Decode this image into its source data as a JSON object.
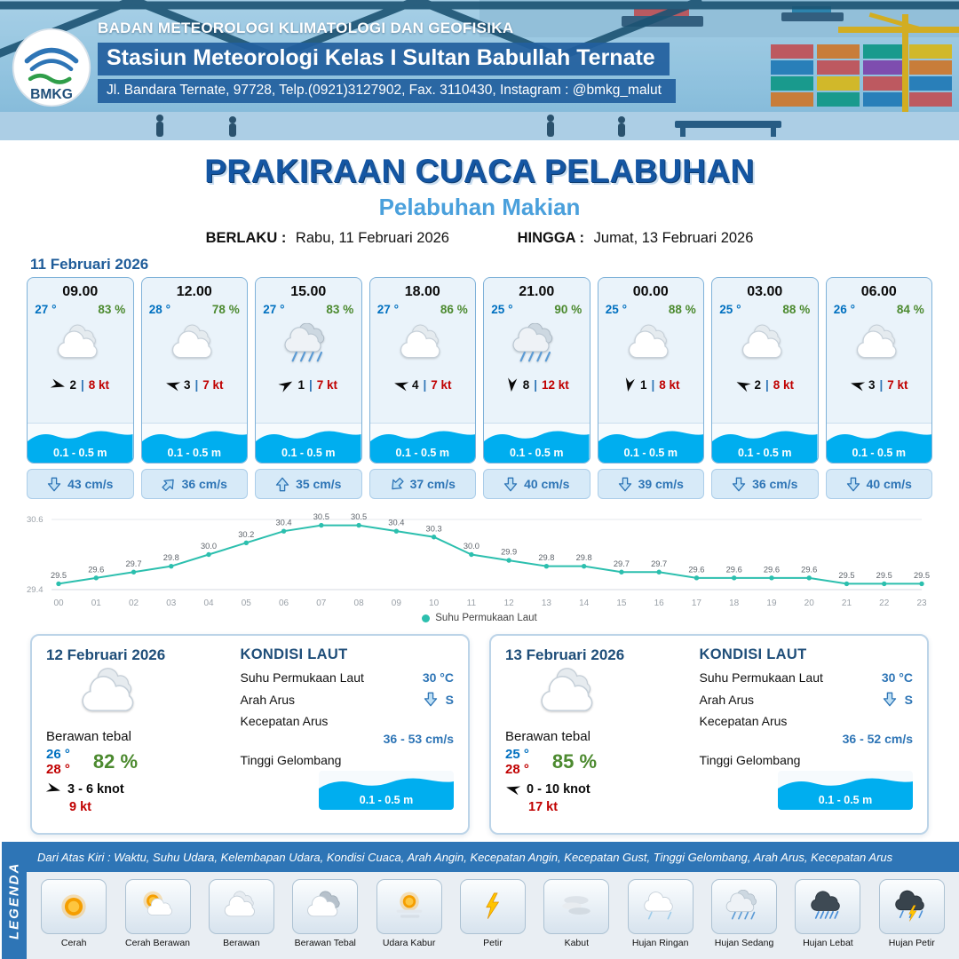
{
  "header": {
    "logo_text": "BMKG",
    "agency": "BADAN METEOROLOGI KLIMATOLOGI DAN GEOFISIKA",
    "station": "Stasiun Meteorologi Kelas I Sultan Babullah Ternate",
    "address": "Jl. Bandara Ternate, 97728, Telp.(0921)3127902, Fax. 3110430, Instagram : @bmkg_malut"
  },
  "title": {
    "main": "PRAKIRAAN CUACA PELABUHAN",
    "subtitle": "Pelabuhan Makian",
    "berlaku_label": "BERLAKU :",
    "berlaku_value": "Rabu, 11 Februari 2026",
    "hingga_label": "HINGGA :",
    "hingga_value": "Jumat, 13 Februari 2026"
  },
  "forecast": {
    "date": "11 Februari 2026",
    "cards": [
      {
        "time": "09.00",
        "temp": "27 °",
        "rh": "83 %",
        "icon": "berawan",
        "wind_rot": 15,
        "wind_val": "2",
        "wind_kt": "8 kt",
        "wave": "0.1 - 0.5 m",
        "cur_rot": 0,
        "current": "43 cm/s"
      },
      {
        "time": "12.00",
        "temp": "28 °",
        "rh": "78 %",
        "icon": "berawan",
        "wind_rot": 195,
        "wind_val": "3",
        "wind_kt": "7 kt",
        "wave": "0.1 - 0.5 m",
        "cur_rot": -135,
        "current": "36 cm/s"
      },
      {
        "time": "15.00",
        "temp": "27 °",
        "rh": "83 %",
        "icon": "hujan-sedang",
        "wind_rot": -30,
        "wind_val": "1",
        "wind_kt": "7 kt",
        "wave": "0.1 - 0.5 m",
        "cur_rot": 180,
        "current": "35 cm/s"
      },
      {
        "time": "18.00",
        "temp": "27 °",
        "rh": "86 %",
        "icon": "berawan",
        "wind_rot": 195,
        "wind_val": "4",
        "wind_kt": "7 kt",
        "wave": "0.1 - 0.5 m",
        "cur_rot": 45,
        "current": "37 cm/s"
      },
      {
        "time": "21.00",
        "temp": "25 °",
        "rh": "90 %",
        "icon": "hujan-sedang",
        "wind_rot": 95,
        "wind_val": "8",
        "wind_kt": "12 kt",
        "wave": "0.1 - 0.5 m",
        "cur_rot": 0,
        "current": "40 cm/s"
      },
      {
        "time": "00.00",
        "temp": "25 °",
        "rh": "88 %",
        "icon": "berawan",
        "wind_rot": 100,
        "wind_val": "1",
        "wind_kt": "8 kt",
        "wave": "0.1 - 0.5 m",
        "cur_rot": 0,
        "current": "39 cm/s"
      },
      {
        "time": "03.00",
        "temp": "25 °",
        "rh": "88 %",
        "icon": "berawan",
        "wind_rot": 205,
        "wind_val": "2",
        "wind_kt": "8 kt",
        "wave": "0.1 - 0.5 m",
        "cur_rot": 0,
        "current": "36 cm/s"
      },
      {
        "time": "06.00",
        "temp": "26 °",
        "rh": "84 %",
        "icon": "berawan",
        "wind_rot": 195,
        "wind_val": "3",
        "wind_kt": "7 kt",
        "wave": "0.1 - 0.5 m",
        "cur_rot": 0,
        "current": "40 cm/s"
      }
    ]
  },
  "chart_data": {
    "type": "line",
    "legend": "Suhu Permukaan Laut",
    "x": [
      "00",
      "01",
      "02",
      "03",
      "04",
      "05",
      "06",
      "07",
      "08",
      "09",
      "10",
      "11",
      "12",
      "13",
      "14",
      "15",
      "16",
      "17",
      "18",
      "19",
      "20",
      "21",
      "22",
      "23"
    ],
    "values": [
      29.5,
      29.6,
      29.7,
      29.8,
      30.0,
      30.2,
      30.4,
      30.5,
      30.5,
      30.4,
      30.3,
      30.0,
      29.9,
      29.8,
      29.8,
      29.7,
      29.7,
      29.6,
      29.6,
      29.6,
      29.6,
      29.5,
      29.5,
      29.5
    ],
    "ylim": [
      29.4,
      30.6
    ],
    "xlabel": "",
    "ylabel": "",
    "grid": "minimal",
    "legend_position": "bottom",
    "color": "#2CBFAE"
  },
  "days": [
    {
      "date": "12 Februari 2026",
      "icon": "berawan",
      "condition": "Berawan tebal",
      "tmin": "26 °",
      "tmax": "28 °",
      "rh": "82 %",
      "wind_rot": 15,
      "wind_range": "3 - 6 knot",
      "gust": "9 kt",
      "sea": {
        "heading": "KONDISI LAUT",
        "sst_label": "Suhu Permukaan Laut",
        "sst": "30 °C",
        "dir_label": "Arah Arus",
        "dir": "S",
        "speed_label": "Kecepatan Arus",
        "speed": "36 - 53 cm/s",
        "wave_label": "Tinggi Gelombang",
        "wave": "0.1 - 0.5 m"
      }
    },
    {
      "date": "13 Februari 2026",
      "icon": "berawan",
      "condition": "Berawan tebal",
      "tmin": "25 °",
      "tmax": "28 °",
      "rh": "85 %",
      "wind_rot": 195,
      "wind_range": "0 - 10 knot",
      "gust": "17 kt",
      "sea": {
        "heading": "KONDISI LAUT",
        "sst_label": "Suhu Permukaan Laut",
        "sst": "30 °C",
        "dir_label": "Arah Arus",
        "dir": "S",
        "speed_label": "Kecepatan Arus",
        "speed": "36 - 52 cm/s",
        "wave_label": "Tinggi Gelombang",
        "wave": "0.1 - 0.5 m"
      }
    }
  ],
  "legend": {
    "title": "LEGENDA",
    "note": "Dari Atas Kiri : Waktu, Suhu Udara, Kelembapan Udara, Kondisi Cuaca, Arah Angin, Kecepatan Angin, Kecepatan Gust, Tinggi Gelombang, Arah Arus, Kecepatan Arus",
    "items": [
      {
        "label": "Cerah",
        "icon": "cerah"
      },
      {
        "label": "Cerah Berawan",
        "icon": "cerah-berawan"
      },
      {
        "label": "Berawan",
        "icon": "berawan"
      },
      {
        "label": "Berawan Tebal",
        "icon": "berawan-tebal"
      },
      {
        "label": "Udara Kabur",
        "icon": "udara-kabur"
      },
      {
        "label": "Petir",
        "icon": "petir"
      },
      {
        "label": "Kabut",
        "icon": "kabut"
      },
      {
        "label": "Hujan Ringan",
        "icon": "hujan-ringan"
      },
      {
        "label": "Hujan Sedang",
        "icon": "hujan-sedang"
      },
      {
        "label": "Hujan Lebat",
        "icon": "hujan-lebat"
      },
      {
        "label": "Hujan Petir",
        "icon": "hujan-petir"
      }
    ]
  }
}
